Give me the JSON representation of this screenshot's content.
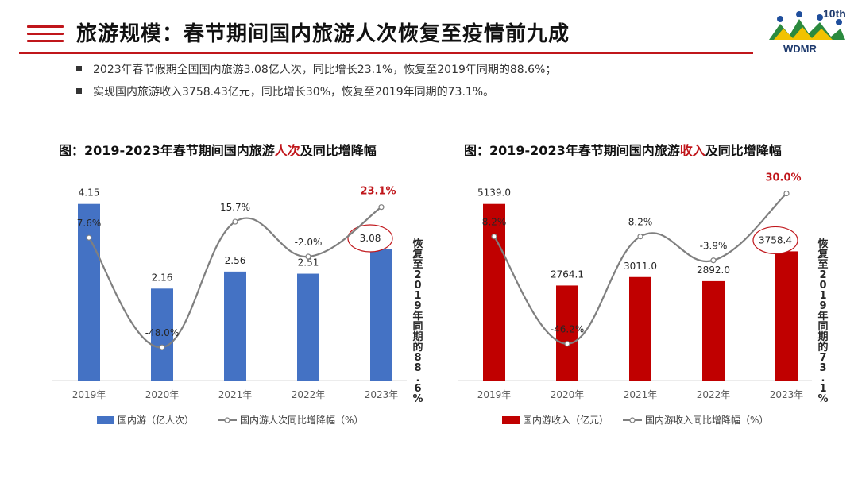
{
  "header": {
    "title": "旅游规模：春节期间国内旅游人次恢复至疫情前九成",
    "logo_text": "WDMR",
    "logo_badge": "10th"
  },
  "bullets": [
    "2023年春节假期全国国内旅游3.08亿人次，同比增长23.1%，恢复至2019年同期的88.6%；",
    "实现国内旅游收入3758.43亿元，同比增长30%，恢复至2019年同期的73.1%。"
  ],
  "colors": {
    "accent": "#c0161b",
    "bar_blue": "#4472c4",
    "bar_red": "#c00000",
    "line_gray": "#7f7f7f"
  },
  "chart_data": [
    {
      "type": "bar",
      "title_pre": "图：2019-2023年春节期间国内旅游",
      "title_hl": "人次",
      "title_post": "及同比增降幅",
      "categories": [
        "2019年",
        "2020年",
        "2021年",
        "2022年",
        "2023年"
      ],
      "series": [
        {
          "name": "国内游（亿人次）",
          "type": "bar",
          "values": [
            4.15,
            2.16,
            2.56,
            2.51,
            3.08
          ],
          "labels": [
            "4.15",
            "2.16",
            "2.56",
            "2.51",
            "3.08"
          ]
        },
        {
          "name": "国内游人次同比增降幅（%）",
          "type": "line",
          "values": [
            7.6,
            -48.0,
            15.7,
            -2.0,
            23.1
          ],
          "labels": [
            "7.6%",
            "-48.0%",
            "15.7%",
            "-2.0%",
            "23.1%"
          ]
        }
      ],
      "annotation": "恢复至2019年同期的88.6%"
    },
    {
      "type": "bar",
      "title_pre": "图：2019-2023年春节期间国内旅游",
      "title_hl": "收入",
      "title_post": "及同比增降幅",
      "categories": [
        "2019年",
        "2020年",
        "2021年",
        "2022年",
        "2023年"
      ],
      "series": [
        {
          "name": "国内游收入（亿元）",
          "type": "bar",
          "values": [
            5139.0,
            2764.1,
            3011.0,
            2892.0,
            3758.4
          ],
          "labels": [
            "5139.0",
            "2764.1",
            "3011.0",
            "2892.0",
            "3758.4"
          ]
        },
        {
          "name": "国内游收入同比增降幅（%）",
          "type": "line",
          "values": [
            8.2,
            -46.2,
            8.2,
            -3.9,
            30.0
          ],
          "labels": [
            "8.2%",
            "-46.2%",
            "8.2%",
            "-3.9%",
            "30.0%"
          ]
        }
      ],
      "annotation": "恢复至2019年同期的73.1%"
    }
  ]
}
